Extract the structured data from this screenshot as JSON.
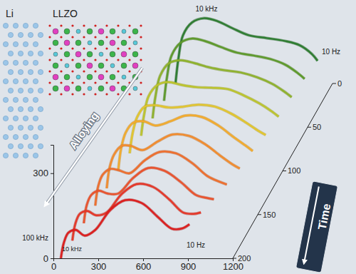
{
  "chart_data": {
    "type": "line",
    "grid": false,
    "xlim": [
      0,
      1200
    ],
    "xticks": [
      0,
      300,
      600,
      900,
      1200
    ],
    "ylim": [
      0,
      400
    ],
    "yticks": [
      0,
      300
    ],
    "zlim": [
      0,
      200
    ],
    "zticks": [
      0,
      50,
      100,
      150,
      200
    ],
    "annotations": [
      "Li",
      "LLZO",
      "Alloying",
      "Time",
      "10 kHz",
      "10 Hz",
      "100 kHz",
      "10 kHz",
      "10 Hz"
    ],
    "series": [
      {
        "time": 0,
        "color": "#2f7d32",
        "x": [
          150,
          170,
          200,
          260,
          340,
          430,
          530,
          640,
          760,
          880,
          980,
          1060,
          1100
        ],
        "values": [
          0,
          90,
          170,
          215,
          230,
          220,
          195,
          170,
          160,
          150,
          135,
          105,
          80
        ]
      },
      {
        "time": 20,
        "color": "#5e9a2c",
        "x": [
          140,
          160,
          190,
          250,
          330,
          420,
          520,
          630,
          740,
          850,
          950,
          1030,
          1080
        ],
        "values": [
          0,
          85,
          160,
          205,
          220,
          210,
          190,
          170,
          160,
          148,
          128,
          100,
          78
        ]
      },
      {
        "time": 40,
        "color": "#8fb22c",
        "x": [
          130,
          150,
          180,
          240,
          320,
          410,
          510,
          610,
          720,
          830,
          930,
          1010,
          1060
        ],
        "values": [
          0,
          80,
          150,
          195,
          205,
          195,
          180,
          170,
          162,
          145,
          122,
          95,
          75
        ]
      },
      {
        "time": 60,
        "color": "#bcc42e",
        "x": [
          120,
          140,
          170,
          230,
          300,
          390,
          490,
          590,
          700,
          810,
          910,
          990,
          1040
        ],
        "values": [
          0,
          75,
          140,
          180,
          190,
          180,
          172,
          170,
          165,
          142,
          115,
          88,
          68
        ]
      },
      {
        "time": 80,
        "color": "#e2c52f",
        "x": [
          110,
          130,
          160,
          210,
          280,
          370,
          470,
          570,
          680,
          790,
          890,
          970,
          1020
        ],
        "values": [
          0,
          72,
          128,
          165,
          170,
          162,
          165,
          172,
          165,
          140,
          108,
          80,
          65
        ]
      },
      {
        "time": 100,
        "color": "#f2ab2e",
        "x": [
          100,
          120,
          150,
          200,
          270,
          350,
          450,
          550,
          660,
          770,
          870,
          950,
          1000
        ],
        "values": [
          0,
          80,
          135,
          170,
          175,
          160,
          175,
          195,
          190,
          160,
          120,
          90,
          70
        ]
      },
      {
        "time": 120,
        "color": "#f28c2e",
        "x": [
          90,
          110,
          140,
          190,
          250,
          330,
          430,
          530,
          640,
          750,
          850,
          930,
          980
        ],
        "values": [
          0,
          75,
          120,
          150,
          150,
          135,
          165,
          190,
          185,
          155,
          115,
          85,
          70
        ]
      },
      {
        "time": 140,
        "color": "#ee6f2e",
        "x": [
          80,
          100,
          130,
          180,
          240,
          310,
          410,
          510,
          620,
          730,
          830,
          910,
          960
        ],
        "values": [
          0,
          70,
          110,
          130,
          125,
          115,
          160,
          190,
          185,
          150,
          105,
          85,
          75
        ]
      },
      {
        "time": 160,
        "color": "#ea532e",
        "x": [
          70,
          90,
          120,
          170,
          230,
          300,
          400,
          500,
          610,
          720,
          820,
          890,
          940
        ],
        "values": [
          0,
          65,
          100,
          115,
          105,
          105,
          160,
          195,
          185,
          145,
          100,
          90,
          85
        ]
      },
      {
        "time": 180,
        "color": "#e5382a",
        "x": [
          60,
          80,
          110,
          160,
          220,
          290,
          390,
          490,
          600,
          710,
          800,
          870,
          920
        ],
        "values": [
          0,
          60,
          95,
          105,
          90,
          100,
          165,
          200,
          190,
          145,
          100,
          95,
          100
        ]
      },
      {
        "time": 200,
        "color": "#dc1f1f",
        "x": [
          50,
          70,
          100,
          150,
          210,
          280,
          380,
          480,
          590,
          700,
          790,
          860,
          910
        ],
        "values": [
          0,
          55,
          90,
          100,
          80,
          100,
          170,
          205,
          195,
          145,
          105,
          105,
          120
        ]
      }
    ]
  }
}
